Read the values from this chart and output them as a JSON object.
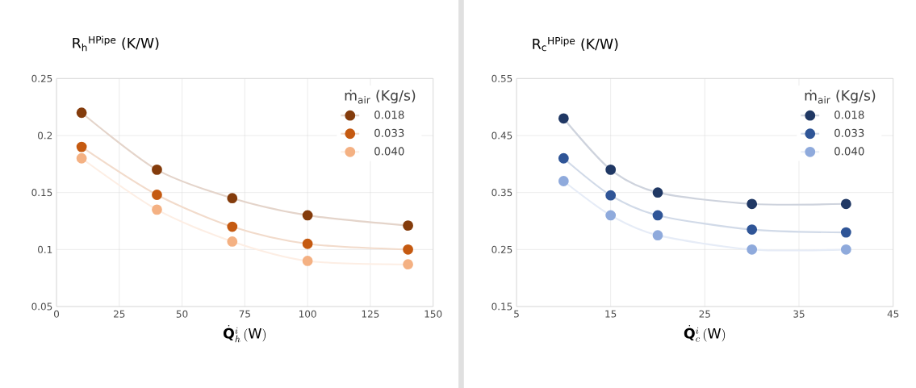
{
  "chart_data": [
    {
      "type": "line",
      "ylabel": "R$_{h}$$^{HPipe}$ (K/W)",
      "xlabel": "\\dot{\\mathbf{Q}}_{h}^{i}\\,\\mathrm{(W)}",
      "legend_title": "ṁ$_{air}$ (Kg/s)",
      "x": [
        10,
        40,
        70,
        100,
        140
      ],
      "series": [
        {
          "name": "0.018",
          "color": "#843c0c",
          "values": [
            0.22,
            0.17,
            0.145,
            0.13,
            0.121
          ]
        },
        {
          "name": "0.033",
          "color": "#c55a11",
          "values": [
            0.19,
            0.148,
            0.12,
            0.105,
            0.1
          ]
        },
        {
          "name": "0.040",
          "color": "#f4b183",
          "values": [
            0.18,
            0.135,
            0.107,
            0.09,
            0.087
          ]
        }
      ],
      "xlim": [
        0,
        150
      ],
      "xticks": [
        0,
        25,
        50,
        75,
        100,
        125,
        150
      ],
      "ylim": [
        0.05,
        0.25
      ],
      "yticks": [
        0.05,
        0.1,
        0.15,
        0.2,
        0.25
      ],
      "grid": true,
      "legend": "top right",
      "marker": "circle"
    },
    {
      "type": "line",
      "ylabel": "R$_{c}$$^{HPipe}$ (K/W)",
      "xlabel": "\\dot{\\mathbf{Q}}_{c}^{i}\\,\\mathrm{(W)}",
      "legend_title": "ṁ$_{air}$ (Kg/s)",
      "x": [
        10,
        15,
        20,
        30,
        40
      ],
      "series": [
        {
          "name": "0.018",
          "color": "#203864",
          "values": [
            0.48,
            0.39,
            0.35,
            0.33,
            0.33
          ]
        },
        {
          "name": "0.033",
          "color": "#2f5597",
          "values": [
            0.41,
            0.345,
            0.31,
            0.285,
            0.28
          ]
        },
        {
          "name": "0.040",
          "color": "#8faadc",
          "values": [
            0.37,
            0.31,
            0.275,
            0.25,
            0.25
          ]
        }
      ],
      "xlim": [
        5,
        45
      ],
      "xticks": [
        5,
        15,
        25,
        35,
        45
      ],
      "ylim": [
        0.15,
        0.55
      ],
      "yticks": [
        0.15,
        0.25,
        0.35,
        0.45,
        0.55
      ],
      "grid": true,
      "legend": "top right",
      "marker": "circle"
    }
  ]
}
